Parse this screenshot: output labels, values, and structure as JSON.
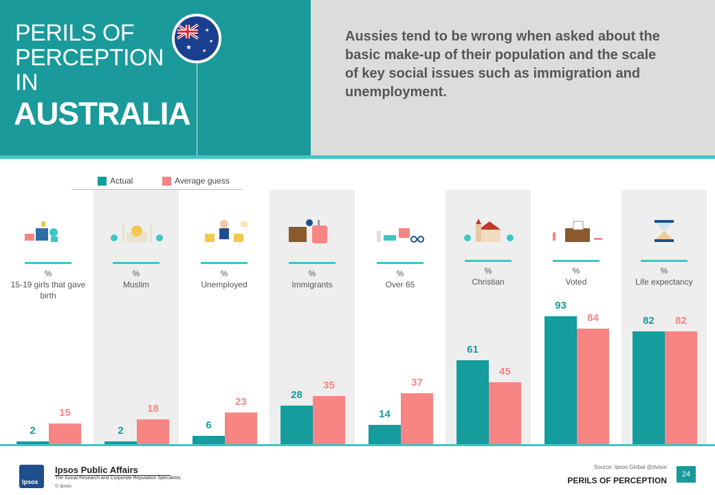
{
  "header": {
    "title_line1": "PERILS OF",
    "title_line2": "PERCEPTION",
    "title_line3": "IN",
    "country": "AUSTRALIA",
    "headline": "Aussies tend to be wrong when asked about the basic make-up of their population and the scale of key social issues such as immigration and unemployment."
  },
  "colors": {
    "actual": "#159c9c",
    "guess": "#f78583",
    "accent": "#3cc6c6",
    "header": "#1a9a9a"
  },
  "legend": {
    "actual": "Actual",
    "guess": "Average guess"
  },
  "chart_data": {
    "type": "bar",
    "categories": [
      {
        "unit": "%",
        "label": "15-19 girls that gave birth",
        "icon": "baby-items-icon"
      },
      {
        "unit": "%",
        "label": "Muslim",
        "icon": "mosque-icon"
      },
      {
        "unit": "%",
        "label": "Unemployed",
        "icon": "job-seeker-icon"
      },
      {
        "unit": "%",
        "label": "Immigrants",
        "icon": "luggage-icon"
      },
      {
        "unit": "%",
        "label": "Over 65",
        "icon": "elderly-items-icon"
      },
      {
        "unit": "%",
        "label": "Christian",
        "icon": "church-icon"
      },
      {
        "unit": "%",
        "label": "Voted",
        "icon": "ballot-box-icon"
      },
      {
        "unit": "%",
        "label": "Life expectancy",
        "icon": "hourglass-icon"
      }
    ],
    "series": [
      {
        "name": "Actual",
        "values": [
          2,
          2,
          6,
          28,
          14,
          61,
          93,
          82
        ]
      },
      {
        "name": "Average guess",
        "values": [
          15,
          18,
          23,
          35,
          37,
          45,
          84,
          82
        ]
      }
    ],
    "ylim": [
      0,
      100
    ],
    "legend": "top-left"
  },
  "footer": {
    "company": "Ipsos Public Affairs",
    "tagline": "The Social Research and Corporate Reputation Specialists",
    "copyright": "© Ipsos",
    "logo_text": "Ipsos",
    "source": "Source: Ipsos Global @dvisor",
    "series_title": "PERILS OF PERCEPTION",
    "page": "24"
  }
}
